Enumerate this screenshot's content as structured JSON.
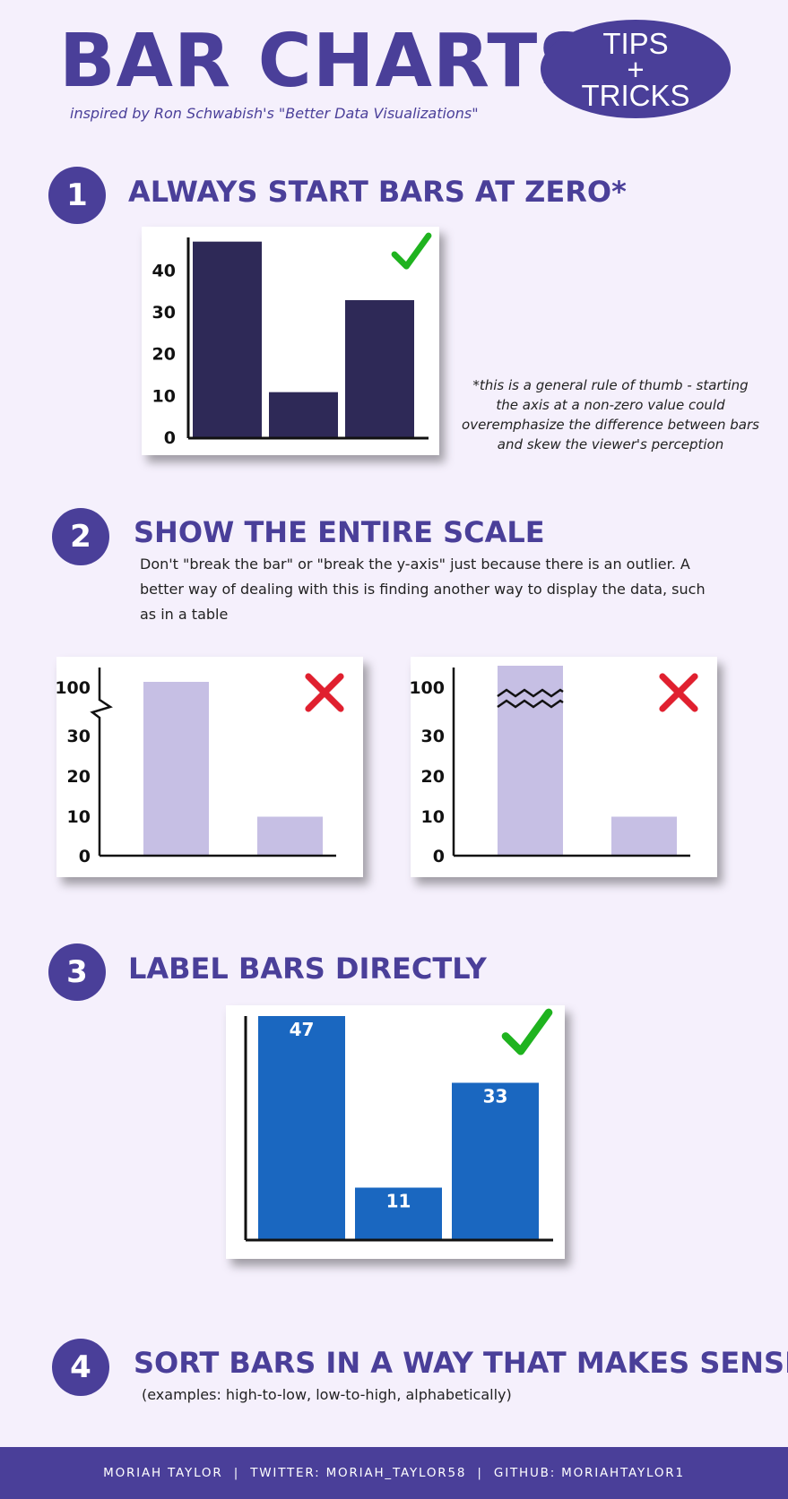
{
  "header": {
    "title": "BAR CHARTS",
    "subtitle": "inspired by Ron Schwabish's \"Better Data Visualizations\"",
    "badge": [
      "TIPS",
      "+",
      "TRICKS"
    ]
  },
  "sections": [
    {
      "number": "1",
      "title": "ALWAYS START BARS AT ZERO*",
      "note": "*this is a general rule of thumb - starting the axis at a non-zero value could overemphasize the difference between bars and skew the viewer's perception"
    },
    {
      "number": "2",
      "title": "SHOW THE ENTIRE SCALE",
      "body": "Don't \"break the bar\" or \"break the y-axis\" just because there is an outlier. A better way of dealing with this is finding another way to display the data, such as in a table"
    },
    {
      "number": "3",
      "title": "LABEL BARS DIRECTLY"
    },
    {
      "number": "4",
      "title": "SORT BARS IN A WAY THAT MAKES SENSE",
      "body": "(examples: high-to-low, low-to-high, alphabetically)"
    }
  ],
  "footer": "MORIAH TAYLOR  |  TWITTER: MORIAH_TAYLOR58  |  GITHUB: MORIAHTAYLOR1",
  "colors": {
    "brand": "#4a3f99",
    "background": "#f5f0fc",
    "bar_dark": "#2e2957",
    "bar_light": "#c6bfe4",
    "bar_blue": "#1a67c0",
    "check_green": "#1fb31f",
    "cross_red": "#e0202f"
  },
  "chart_data": [
    {
      "type": "bar",
      "values": [
        47,
        11,
        33
      ],
      "yticks": [
        "0",
        "10",
        "20",
        "30",
        "40"
      ],
      "ylim": [
        0,
        48
      ],
      "marker": "check-icon"
    },
    {
      "type": "bar",
      "values": [
        100,
        10
      ],
      "yticks": [
        "0",
        "10",
        "20",
        "30",
        "100"
      ],
      "axis_break": "y-axis",
      "marker": "cross-icon"
    },
    {
      "type": "bar",
      "values": [
        100,
        10
      ],
      "yticks": [
        "0",
        "10",
        "20",
        "30",
        "100"
      ],
      "axis_break": "bar",
      "marker": "cross-icon"
    },
    {
      "type": "bar",
      "values": [
        47,
        11,
        33
      ],
      "data_labels": [
        "47",
        "11",
        "33"
      ],
      "ylim": [
        0,
        47
      ],
      "marker": "check-icon"
    }
  ]
}
